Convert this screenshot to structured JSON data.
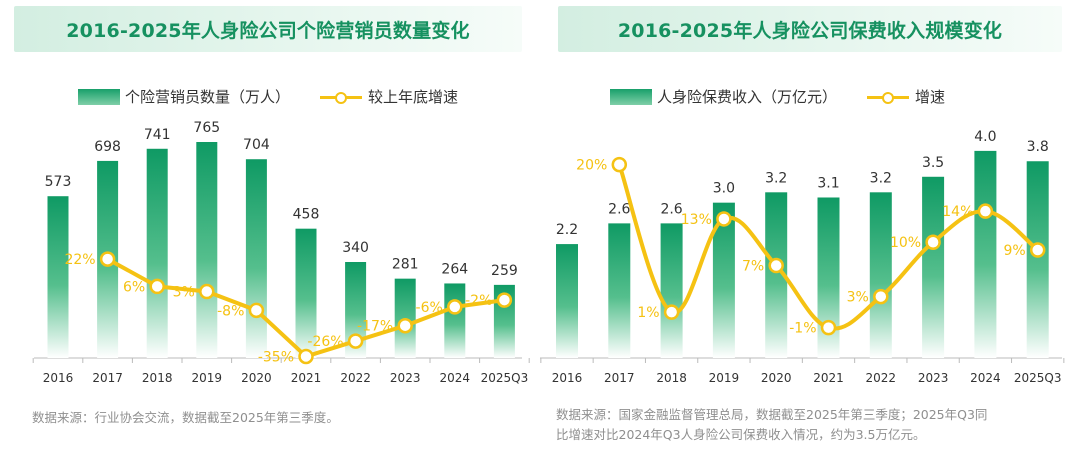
{
  "colors": {
    "bar_top": "#0f9a64",
    "bar_bottom": "#ffffff",
    "line": "#f5c213",
    "title": "#169160",
    "axis": "#bbbbbb"
  },
  "chart_data": [
    {
      "type": "bar+line",
      "title": "2016-2025年人身险公司个险营销员数量变化",
      "legend": {
        "bars": "个险营销员数量（万人）",
        "line": "较上年底增速"
      },
      "categories": [
        "2016",
        "2017",
        "2018",
        "2019",
        "2020",
        "2021",
        "2022",
        "2023",
        "2024",
        "2025Q3"
      ],
      "series": [
        {
          "name": "个险营销员数量（万人）",
          "kind": "bar",
          "values": [
            573,
            698,
            741,
            765,
            704,
            458,
            340,
            281,
            264,
            259
          ],
          "labels": [
            "573",
            "698",
            "741",
            "765",
            "704",
            "458",
            "340",
            "281",
            "264",
            "259"
          ]
        },
        {
          "name": "较上年底增速",
          "kind": "line",
          "values": [
            null,
            22,
            6,
            3,
            -8,
            -35,
            -26,
            -17,
            -6,
            -2
          ],
          "labels": [
            "",
            "22%",
            "6%",
            "3%",
            "-8%",
            "-35%",
            "-26%",
            "-17%",
            "-6%",
            "-2%"
          ]
        }
      ],
      "bar_max": 850,
      "line_range": [
        -40,
        80
      ],
      "source": "数据来源：行业协会交流，数据截至2025年第三季度。"
    },
    {
      "type": "bar+line",
      "title": "2016-2025年人身险公司保费收入规模变化",
      "legend": {
        "bars": "人身险保费收入（万亿元）",
        "line": "增速"
      },
      "categories": [
        "2016",
        "2017",
        "2018",
        "2019",
        "2020",
        "2021",
        "2022",
        "2023",
        "2024",
        "2025Q3"
      ],
      "series": [
        {
          "name": "人身险保费收入（万亿元）",
          "kind": "bar",
          "values": [
            2.2,
            2.6,
            2.6,
            3.0,
            3.2,
            3.1,
            3.2,
            3.5,
            4.0,
            3.8
          ],
          "labels": [
            "2.2",
            "2.6",
            "2.6",
            "3.0",
            "3.2",
            "3.1",
            "3.2",
            "3.5",
            "4.0",
            "3.8"
          ]
        },
        {
          "name": "增速",
          "kind": "line",
          "values": [
            null,
            20,
            1,
            13,
            7,
            -1,
            3,
            10,
            14,
            9
          ],
          "labels": [
            "",
            "20%",
            "1%",
            "13%",
            "7%",
            "-1%",
            "3%",
            "10%",
            "14%",
            "9%"
          ]
        }
      ],
      "bar_max": 4.5,
      "line_range": [
        -8,
        26
      ],
      "source": [
        "数据来源：国家金融监督管理总局，数据截至2025年第三季度；2025年Q3同",
        "比增速对比2024年Q3人身险公司保费收入情况，约为3.5万亿元。"
      ]
    }
  ]
}
